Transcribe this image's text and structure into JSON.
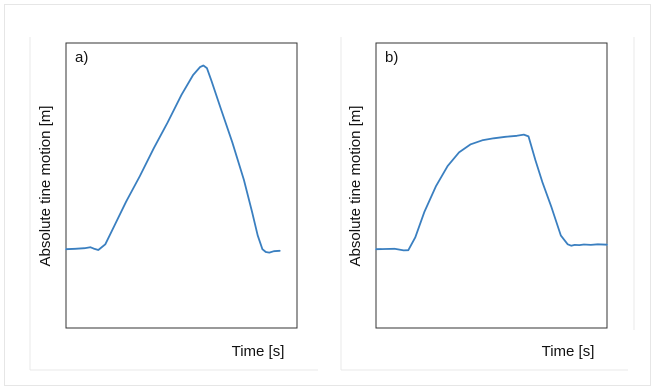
{
  "chart_data": [
    {
      "type": "line",
      "panel_label": "a)",
      "xlabel": "Time [s]",
      "ylabel": "Absolute tine motion [m]",
      "x_ticks_visible": false,
      "y_ticks_visible": false,
      "grid": false,
      "xlim": [
        0,
        100
      ],
      "ylim": [
        0,
        100
      ],
      "series": [
        {
          "color": "#3a7fc0",
          "x": [
            0,
            4,
            8,
            10.5,
            12,
            14,
            17,
            21,
            26,
            32,
            38,
            44,
            50,
            55,
            58,
            59.5,
            61,
            63,
            67,
            72,
            77,
            80.5,
            83,
            85,
            86.5,
            88,
            90,
            92.5
          ],
          "y": [
            11,
            11.2,
            11.5,
            12,
            11.3,
            10.6,
            13.5,
            23,
            35,
            48,
            62,
            75,
            89,
            99,
            103,
            103.8,
            102.5,
            96,
            82,
            65,
            46,
            30,
            18,
            11,
            9.6,
            9.3,
            10,
            10.2
          ]
        }
      ]
    },
    {
      "type": "line",
      "panel_label": "b)",
      "xlabel": "Time [s]",
      "ylabel": "Absolute tine motion [m]",
      "x_ticks_visible": false,
      "y_ticks_visible": false,
      "grid": false,
      "xlim": [
        0,
        100
      ],
      "ylim": [
        0,
        100
      ],
      "series": [
        {
          "color": "#3a7fc0",
          "x": [
            0,
            4,
            8,
            12,
            14,
            17,
            21,
            26,
            31,
            36,
            41,
            46,
            51,
            56,
            61,
            64,
            66,
            67,
            69,
            72,
            76,
            80,
            83,
            84.5,
            86,
            88,
            90,
            93,
            96,
            100
          ],
          "y": [
            11,
            11.1,
            11.2,
            10.4,
            10.5,
            17,
            30,
            43,
            53,
            60,
            64,
            66,
            67,
            67.8,
            68.3,
            68.9,
            68,
            64,
            56,
            45,
            32,
            18,
            13.5,
            12.8,
            13.2,
            13.1,
            13.4,
            13.2,
            13.5,
            13.3
          ]
        }
      ]
    }
  ]
}
